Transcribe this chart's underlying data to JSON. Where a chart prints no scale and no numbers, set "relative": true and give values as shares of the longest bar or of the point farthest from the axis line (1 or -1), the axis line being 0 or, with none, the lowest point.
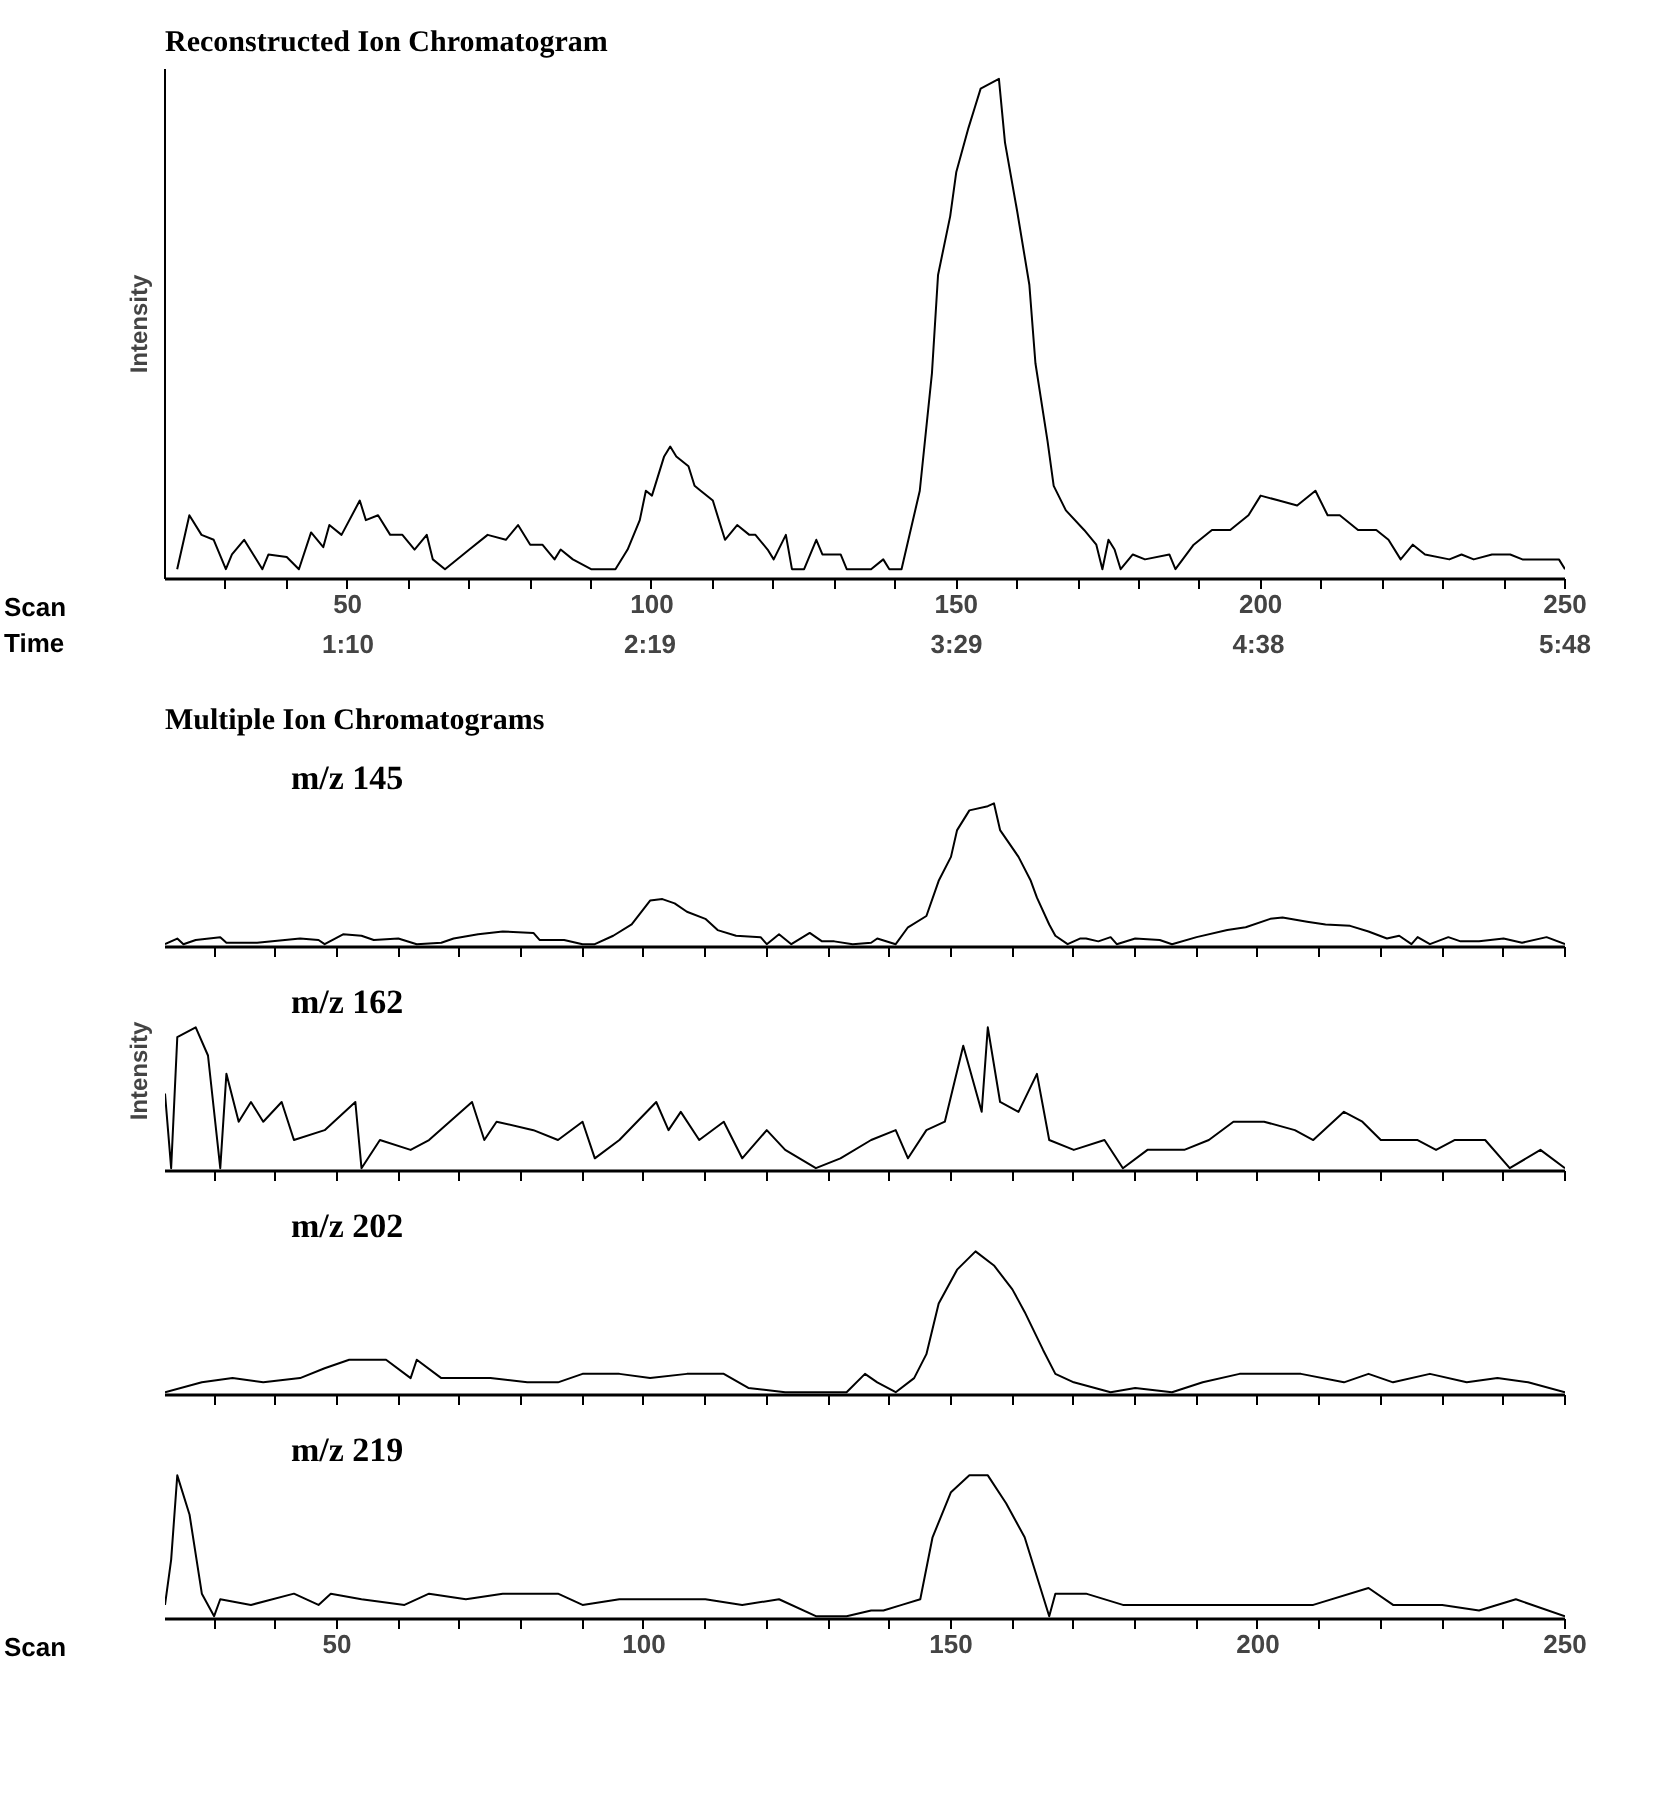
{
  "chart_data": [
    {
      "type": "line",
      "title": "Reconstructed Ion Chromatogram",
      "ylabel": "Intensity",
      "xlabel": "Scan",
      "x2label": "Time",
      "relative": true,
      "color": "#000000",
      "grid": false,
      "tick_labels": "x",
      "xlim": [
        20,
        250
      ],
      "xticks": [
        {
          "value": 30,
          "label": null
        },
        {
          "value": 40,
          "label": null
        },
        50,
        {
          "value": 60,
          "label": null
        },
        {
          "value": 70,
          "label": null
        },
        {
          "value": 80,
          "label": null
        },
        {
          "value": 90,
          "label": null
        },
        100,
        {
          "value": 110,
          "label": null
        },
        {
          "value": 120,
          "label": null
        },
        {
          "value": 130,
          "label": null
        },
        {
          "value": 140,
          "label": null
        },
        150,
        {
          "value": 160,
          "label": null
        },
        {
          "value": 170,
          "label": null
        },
        {
          "value": 180,
          "label": null
        },
        {
          "value": 190,
          "label": null
        },
        200,
        {
          "value": 210,
          "label": null
        },
        {
          "value": 220,
          "label": null
        },
        {
          "value": 230,
          "label": null
        },
        {
          "value": 240,
          "label": null
        },
        250
      ],
      "x2lim": [
        0.47,
        5.8
      ],
      "x2ticks": [
        {
          "value": 1.1667,
          "label": "1:10"
        },
        {
          "value": 2.3167,
          "label": "2:19"
        },
        {
          "value": 3.4833,
          "label": "3:29"
        },
        {
          "value": 4.6333,
          "label": "4:38"
        },
        {
          "value": 5.8,
          "label": "5:48"
        }
      ],
      "x": [
        22,
        24,
        26,
        28,
        30,
        31,
        33,
        36,
        37,
        40,
        42,
        44,
        46,
        47,
        49,
        52,
        53,
        55,
        57,
        59,
        61,
        63,
        64,
        66,
        70,
        73,
        76,
        78,
        80,
        82,
        84,
        85,
        87,
        90,
        94,
        96,
        98,
        99,
        100,
        102,
        103,
        104,
        106,
        107,
        108,
        110,
        112,
        114,
        116,
        117,
        119,
        120,
        122,
        123,
        125,
        127,
        128,
        131,
        132,
        136,
        138,
        139,
        141,
        144,
        146,
        147,
        149,
        150,
        152,
        153,
        154,
        157,
        158,
        160,
        162,
        163,
        165,
        166,
        168,
        171,
        173,
        174,
        175,
        176,
        177,
        179,
        181,
        185,
        186,
        189,
        192,
        195,
        198,
        200,
        203,
        206,
        209,
        211,
        213,
        216,
        219,
        221,
        223,
        225,
        227,
        231,
        233,
        235,
        238,
        241,
        243,
        246,
        249,
        250
      ],
      "values": [
        0,
        0.11,
        0.07,
        0.06,
        0,
        0.03,
        0.06,
        0,
        0.03,
        0.025,
        0,
        0.075,
        0.045,
        0.09,
        0.07,
        0.14,
        0.1,
        0.11,
        0.07,
        0.07,
        0.04,
        0.07,
        0.02,
        0,
        0.04,
        0.07,
        0.06,
        0.09,
        0.05,
        0.05,
        0.02,
        0.04,
        0.02,
        0,
        0,
        0.04,
        0.1,
        0.16,
        0.15,
        0.23,
        0.25,
        0.23,
        0.21,
        0.17,
        0.16,
        0.14,
        0.06,
        0.09,
        0.07,
        0.07,
        0.04,
        0.02,
        0.07,
        0,
        0,
        0.06,
        0.03,
        0.03,
        0,
        0,
        0.02,
        0,
        0,
        0.16,
        0.4,
        0.6,
        0.72,
        0.81,
        0.9,
        0.94,
        0.98,
        1,
        0.87,
        0.73,
        0.58,
        0.42,
        0.26,
        0.17,
        0.12,
        0.08,
        0.05,
        0,
        0.06,
        0.04,
        0,
        0.03,
        0.02,
        0.03,
        0,
        0.05,
        0.08,
        0.08,
        0.11,
        0.15,
        0.14,
        0.13,
        0.16,
        0.11,
        0.11,
        0.08,
        0.08,
        0.06,
        0.02,
        0.05,
        0.03,
        0.02,
        0.03,
        0.02,
        0.03,
        0.03,
        0.02,
        0.02,
        0.02,
        0
      ]
    },
    {
      "type": "line",
      "title": "Multiple Ion Chromatograms",
      "relative": true,
      "grid": false,
      "tick_labels": false,
      "xlim": [
        22,
        250
      ],
      "xticks": [
        30,
        40,
        50,
        60,
        70,
        80,
        90,
        100,
        110,
        120,
        130,
        140,
        150,
        160,
        170,
        180,
        190,
        200,
        210,
        220,
        230,
        240,
        250
      ],
      "series": [
        {
          "name": "m/z  145",
          "color": "#000000",
          "x": [
            22,
            24,
            25,
            27,
            31,
            32,
            37,
            44,
            47,
            48,
            51,
            54,
            56,
            60,
            63,
            67,
            69,
            73,
            77,
            82,
            83,
            87,
            90,
            92,
            95,
            98,
            101,
            103,
            105,
            107,
            110,
            112,
            115,
            119,
            120,
            122,
            124,
            127,
            129,
            131,
            134,
            137,
            138,
            141,
            143,
            146,
            148,
            150,
            151,
            153,
            156,
            157,
            158,
            161,
            163,
            164,
            166,
            167,
            169,
            171,
            172,
            174,
            176,
            177,
            180,
            184,
            186,
            190,
            195,
            198,
            202,
            204,
            208,
            211,
            215,
            218,
            221,
            223,
            225,
            226,
            228,
            231,
            233,
            236,
            240,
            243,
            247,
            250
          ],
          "values": [
            0,
            0.04,
            0,
            0.03,
            0.05,
            0.01,
            0.01,
            0.04,
            0.03,
            0,
            0.07,
            0.06,
            0.03,
            0.04,
            0,
            0.01,
            0.04,
            0.07,
            0.09,
            0.08,
            0.03,
            0.03,
            0,
            0,
            0.06,
            0.14,
            0.31,
            0.32,
            0.29,
            0.23,
            0.18,
            0.1,
            0.06,
            0.05,
            0,
            0.07,
            0,
            0.08,
            0.02,
            0.02,
            0,
            0.01,
            0.04,
            0,
            0.12,
            0.2,
            0.45,
            0.62,
            0.81,
            0.95,
            0.98,
            1,
            0.81,
            0.62,
            0.45,
            0.33,
            0.14,
            0.06,
            0,
            0.04,
            0.04,
            0.02,
            0.05,
            0,
            0.04,
            0.03,
            0,
            0.05,
            0.1,
            0.12,
            0.18,
            0.19,
            0.16,
            0.14,
            0.13,
            0.09,
            0.04,
            0.06,
            0,
            0.05,
            0,
            0.05,
            0.02,
            0.02,
            0.04,
            0.01,
            0.05,
            0
          ]
        }
      ]
    },
    {
      "type": "line",
      "ylabel": "Intensity",
      "relative": true,
      "grid": false,
      "tick_labels": false,
      "xlim": [
        22,
        250
      ],
      "xticks": [
        30,
        40,
        50,
        60,
        70,
        80,
        90,
        100,
        110,
        120,
        130,
        140,
        150,
        160,
        170,
        180,
        190,
        200,
        210,
        220,
        230,
        240,
        250
      ],
      "series": [
        {
          "name": "m/z  162",
          "color": "#000000",
          "x": [
            22,
            23,
            24,
            27,
            29,
            31,
            32,
            34,
            36,
            38,
            41,
            43,
            48,
            53,
            54,
            57,
            62,
            65,
            72,
            74,
            76,
            82,
            86,
            90,
            92,
            96,
            102,
            104,
            106,
            109,
            113,
            116,
            120,
            123,
            128,
            132,
            137,
            141,
            143,
            146,
            149,
            152,
            155,
            156,
            158,
            161,
            164,
            166,
            170,
            175,
            178,
            182,
            188,
            192,
            196,
            201,
            206,
            209,
            214,
            217,
            220,
            223,
            226,
            229,
            232,
            237,
            241,
            246,
            250
          ],
          "values": [
            0.53,
            0,
            0.93,
            1,
            0.8,
            0,
            0.67,
            0.33,
            0.47,
            0.33,
            0.47,
            0.2,
            0.27,
            0.47,
            0,
            0.2,
            0.13,
            0.2,
            0.47,
            0.2,
            0.33,
            0.27,
            0.2,
            0.33,
            0.07,
            0.2,
            0.47,
            0.27,
            0.4,
            0.2,
            0.33,
            0.07,
            0.27,
            0.13,
            0,
            0.07,
            0.2,
            0.27,
            0.07,
            0.27,
            0.33,
            0.87,
            0.4,
            1,
            0.47,
            0.4,
            0.67,
            0.2,
            0.13,
            0.2,
            0,
            0.13,
            0.13,
            0.2,
            0.33,
            0.33,
            0.27,
            0.2,
            0.4,
            0.33,
            0.2,
            0.2,
            0.2,
            0.13,
            0.2,
            0.2,
            0,
            0.13,
            0
          ]
        }
      ]
    },
    {
      "type": "line",
      "relative": true,
      "grid": false,
      "tick_labels": false,
      "xlim": [
        22,
        250
      ],
      "xticks": [
        30,
        40,
        50,
        60,
        70,
        80,
        90,
        100,
        110,
        120,
        130,
        140,
        150,
        160,
        170,
        180,
        190,
        200,
        210,
        220,
        230,
        240,
        250
      ],
      "series": [
        {
          "name": "m/z  202",
          "color": "#000000",
          "x": [
            22,
            28,
            33,
            38,
            44,
            48,
            52,
            58,
            62,
            63,
            67,
            75,
            81,
            86,
            90,
            96,
            101,
            107,
            113,
            117,
            123,
            133,
            136,
            138,
            141,
            144,
            146,
            148,
            151,
            154,
            157,
            160,
            162,
            165,
            167,
            170,
            176,
            180,
            186,
            191,
            197,
            201,
            207,
            214,
            218,
            222,
            228,
            234,
            239,
            244,
            250
          ],
          "values": [
            0,
            0.07,
            0.1,
            0.07,
            0.1,
            0.17,
            0.23,
            0.23,
            0.1,
            0.23,
            0.1,
            0.1,
            0.07,
            0.07,
            0.13,
            0.13,
            0.1,
            0.13,
            0.13,
            0.03,
            0,
            0,
            0.13,
            0.07,
            0,
            0.1,
            0.27,
            0.63,
            0.87,
            1,
            0.9,
            0.73,
            0.57,
            0.3,
            0.13,
            0.07,
            0,
            0.03,
            0,
            0.07,
            0.13,
            0.13,
            0.13,
            0.07,
            0.13,
            0.07,
            0.13,
            0.07,
            0.1,
            0.07,
            0
          ]
        }
      ]
    },
    {
      "type": "line",
      "xlabel": "Scan",
      "relative": true,
      "grid": false,
      "tick_labels": "x",
      "xlim": [
        22,
        250
      ],
      "xticks": [
        {
          "value": 30,
          "label": null
        },
        {
          "value": 40,
          "label": null
        },
        50,
        {
          "value": 60,
          "label": null
        },
        {
          "value": 70,
          "label": null
        },
        {
          "value": 80,
          "label": null
        },
        {
          "value": 90,
          "label": null
        },
        100,
        {
          "value": 110,
          "label": null
        },
        {
          "value": 120,
          "label": null
        },
        {
          "value": 130,
          "label": null
        },
        {
          "value": 140,
          "label": null
        },
        150,
        {
          "value": 160,
          "label": null
        },
        {
          "value": 170,
          "label": null
        },
        {
          "value": 180,
          "label": null
        },
        {
          "value": 190,
          "label": null
        },
        200,
        {
          "value": 210,
          "label": null
        },
        {
          "value": 220,
          "label": null
        },
        {
          "value": 230,
          "label": null
        },
        {
          "value": 240,
          "label": null
        },
        250
      ],
      "series": [
        {
          "name": "m/z  219",
          "color": "#000000",
          "x": [
            22,
            23,
            24,
            26,
            28,
            30,
            31,
            36,
            43,
            47,
            49,
            54,
            61,
            65,
            71,
            77,
            86,
            90,
            96,
            103,
            110,
            116,
            122,
            128,
            133,
            137,
            139,
            142,
            145,
            147,
            150,
            153,
            156,
            159,
            162,
            164,
            166,
            167,
            172,
            178,
            183,
            188,
            195,
            201,
            209,
            218,
            222,
            230,
            236,
            242,
            250
          ],
          "values": [
            0.08,
            0.4,
            1,
            0.72,
            0.16,
            0,
            0.12,
            0.08,
            0.16,
            0.08,
            0.16,
            0.12,
            0.08,
            0.16,
            0.12,
            0.16,
            0.16,
            0.08,
            0.12,
            0.12,
            0.12,
            0.08,
            0.12,
            0,
            0,
            0.04,
            0.04,
            0.08,
            0.12,
            0.56,
            0.88,
            1,
            1,
            0.8,
            0.56,
            0.28,
            0,
            0.16,
            0.16,
            0.08,
            0.08,
            0.08,
            0.08,
            0.08,
            0.08,
            0.2,
            0.08,
            0.08,
            0.04,
            0.12,
            0
          ]
        }
      ]
    }
  ]
}
